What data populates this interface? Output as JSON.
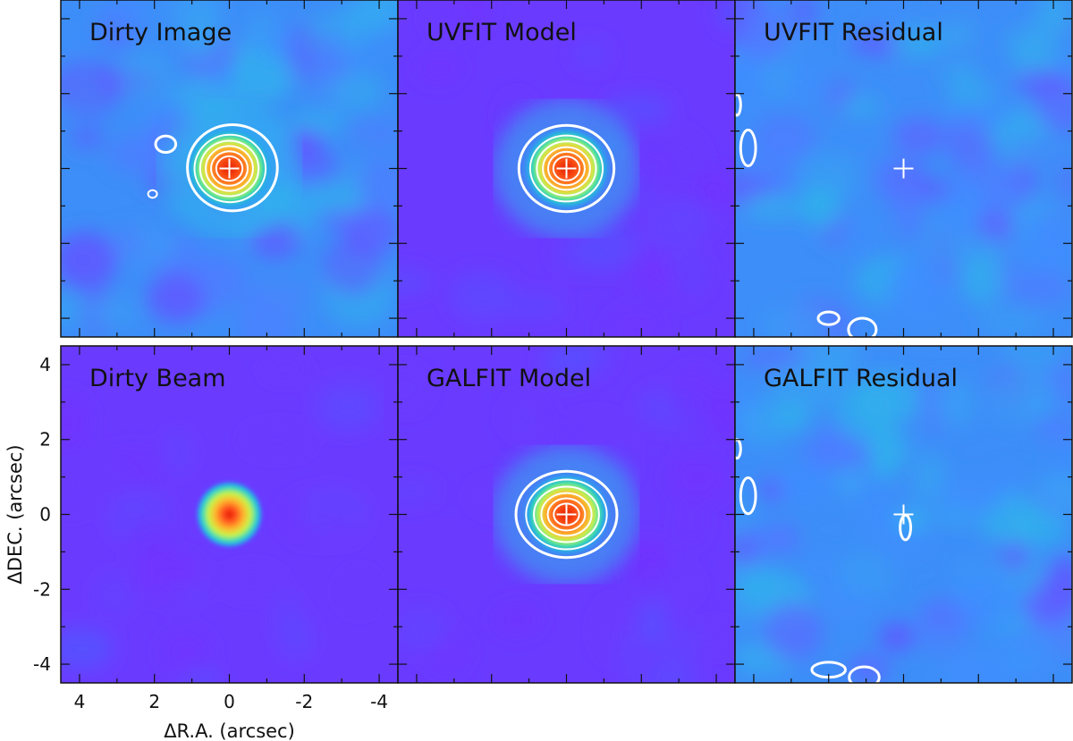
{
  "chart_data": {
    "type": "heatmap",
    "grid": {
      "rows": 2,
      "cols": 3
    },
    "xlabel": "ΔR.A. (arcsec)",
    "ylabel": "ΔDEC. (arcsec)",
    "xlim": [
      4.5,
      -4.5
    ],
    "ylim": [
      -4.5,
      4.5
    ],
    "x_ticks": [
      4,
      2,
      0,
      -2,
      -4
    ],
    "x_tick_labels": [
      "4",
      "2",
      "0",
      "-2",
      "-4"
    ],
    "y_ticks": [
      4,
      2,
      0,
      -2,
      -4
    ],
    "y_tick_labels": [
      "4",
      "2",
      "0",
      "-2",
      "-4"
    ],
    "minor_tick_step": 1,
    "colormap": "rainbow",
    "contour_color": "#ffffff",
    "panels": [
      {
        "id": "dirty-image",
        "title": "Dirty Image",
        "row": 0,
        "col": 0,
        "background": "noise",
        "source": true,
        "cross": true,
        "contours": [
          {
            "cx": -0.08,
            "cy": 0.02,
            "rx": 1.2,
            "ry": 1.15,
            "w": 3
          },
          {
            "cx": -0.02,
            "cy": 0.0,
            "rx": 0.95,
            "ry": 0.9,
            "w": 2
          },
          {
            "cx": 0.0,
            "cy": 0.0,
            "rx": 0.78,
            "ry": 0.74,
            "w": 2
          },
          {
            "cx": 0.0,
            "cy": 0.0,
            "rx": 0.63,
            "ry": 0.6,
            "w": 2
          },
          {
            "cx": 0.0,
            "cy": 0.0,
            "rx": 0.49,
            "ry": 0.46,
            "w": 2
          },
          {
            "cx": 0.0,
            "cy": 0.0,
            "rx": 0.35,
            "ry": 0.33,
            "w": 2
          },
          {
            "cx": 1.7,
            "cy": 0.65,
            "rx": 0.27,
            "ry": 0.22,
            "w": 3
          },
          {
            "cx": 2.05,
            "cy": -0.68,
            "rx": 0.12,
            "ry": 0.1,
            "w": 2
          }
        ]
      },
      {
        "id": "uvfit-model",
        "title": "UVFIT Model",
        "row": 0,
        "col": 1,
        "background": "flat",
        "source": true,
        "cross": true,
        "contours": [
          {
            "cx": 0.0,
            "cy": 0.0,
            "rx": 1.27,
            "ry": 1.15,
            "w": 3
          },
          {
            "cx": 0.0,
            "cy": 0.0,
            "rx": 0.97,
            "ry": 0.88,
            "w": 2
          },
          {
            "cx": 0.0,
            "cy": 0.0,
            "rx": 0.79,
            "ry": 0.72,
            "w": 2
          },
          {
            "cx": 0.0,
            "cy": 0.0,
            "rx": 0.63,
            "ry": 0.57,
            "w": 2
          },
          {
            "cx": 0.0,
            "cy": 0.0,
            "rx": 0.49,
            "ry": 0.45,
            "w": 2
          },
          {
            "cx": 0.0,
            "cy": 0.0,
            "rx": 0.35,
            "ry": 0.32,
            "w": 2
          }
        ]
      },
      {
        "id": "uvfit-residual",
        "title": "UVFIT Residual",
        "row": 0,
        "col": 2,
        "background": "noise",
        "source": false,
        "cross": true,
        "contours": [
          {
            "cx": 4.15,
            "cy": 0.55,
            "rx": 0.2,
            "ry": 0.48,
            "w": 3
          },
          {
            "cx": 4.45,
            "cy": 1.7,
            "rx": 0.1,
            "ry": 0.28,
            "w": 3
          },
          {
            "cx": 2.0,
            "cy": -4.0,
            "rx": 0.28,
            "ry": 0.17,
            "w": 3
          },
          {
            "cx": 1.1,
            "cy": -4.3,
            "rx": 0.37,
            "ry": 0.3,
            "w": 3
          }
        ]
      },
      {
        "id": "dirty-beam",
        "title": "Dirty Beam",
        "row": 1,
        "col": 0,
        "background": "flat",
        "source": "beam",
        "cross": false,
        "contours": []
      },
      {
        "id": "galfit-model",
        "title": "GALFIT Model",
        "row": 1,
        "col": 1,
        "background": "flat",
        "source": true,
        "cross": true,
        "contours": [
          {
            "cx": 0.0,
            "cy": 0.0,
            "rx": 1.35,
            "ry": 1.15,
            "w": 3
          },
          {
            "cx": 0.0,
            "cy": 0.0,
            "rx": 1.08,
            "ry": 0.93,
            "w": 2
          },
          {
            "cx": 0.0,
            "cy": 0.0,
            "rx": 0.87,
            "ry": 0.74,
            "w": 2
          },
          {
            "cx": 0.0,
            "cy": 0.0,
            "rx": 0.67,
            "ry": 0.57,
            "w": 2
          },
          {
            "cx": 0.0,
            "cy": 0.0,
            "rx": 0.5,
            "ry": 0.43,
            "w": 2
          },
          {
            "cx": 0.0,
            "cy": 0.0,
            "rx": 0.34,
            "ry": 0.29,
            "w": 2
          }
        ]
      },
      {
        "id": "galfit-residual",
        "title": "GALFIT Residual",
        "row": 1,
        "col": 2,
        "background": "noise",
        "source": false,
        "cross": true,
        "contours": [
          {
            "cx": 4.15,
            "cy": 0.5,
            "rx": 0.2,
            "ry": 0.48,
            "w": 3
          },
          {
            "cx": 4.45,
            "cy": 1.75,
            "rx": 0.1,
            "ry": 0.25,
            "w": 3
          },
          {
            "cx": -0.05,
            "cy": -0.35,
            "rx": 0.14,
            "ry": 0.33,
            "w": 3
          },
          {
            "cx": 2.0,
            "cy": -4.15,
            "rx": 0.45,
            "ry": 0.2,
            "w": 3
          },
          {
            "cx": 1.05,
            "cy": -4.35,
            "rx": 0.4,
            "ry": 0.28,
            "w": 3
          }
        ]
      }
    ]
  }
}
